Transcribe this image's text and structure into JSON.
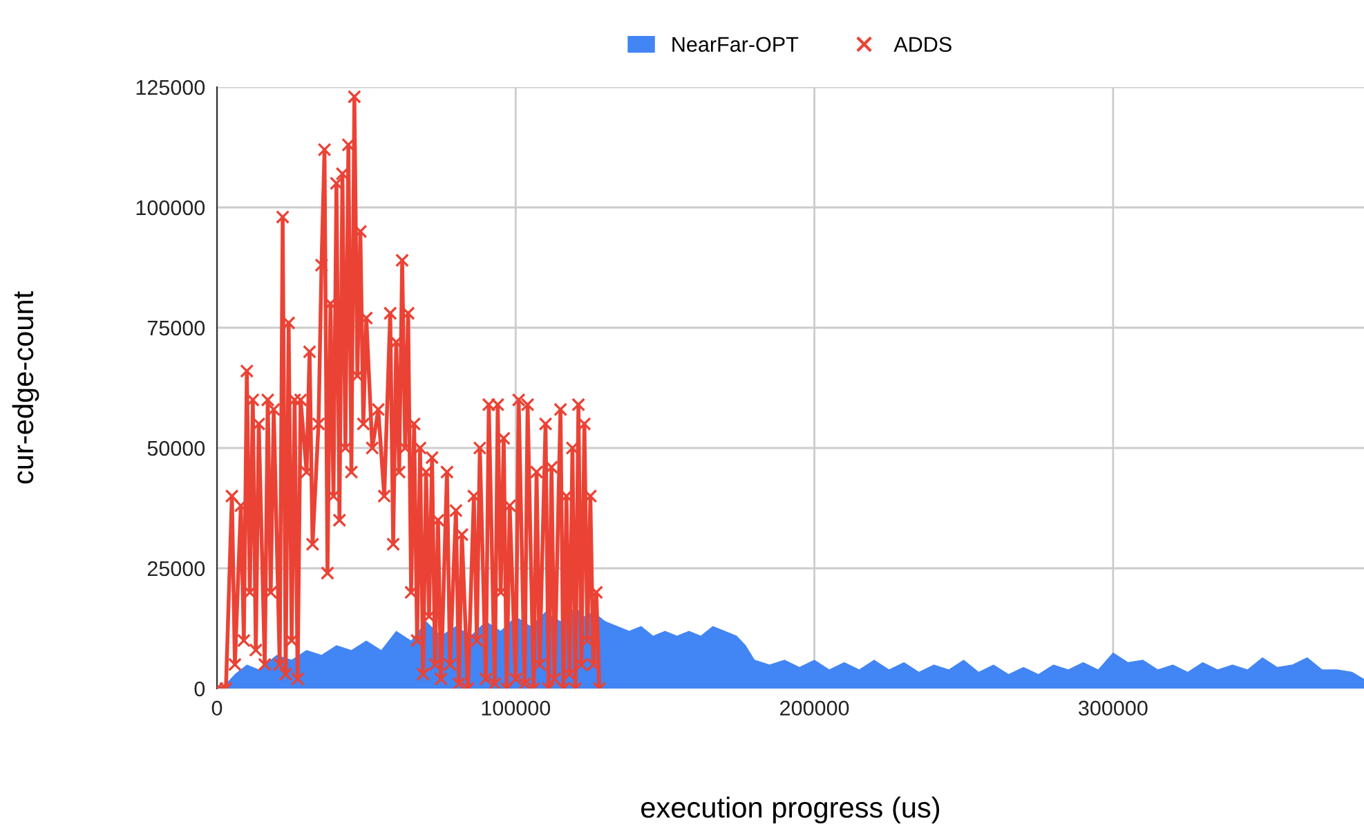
{
  "chart_data": {
    "type": "line",
    "xlabel": "execution progress (us)",
    "ylabel": "cur-edge-count",
    "xlim": [
      0,
      384000
    ],
    "ylim": [
      0,
      125000
    ],
    "xticks": [
      0,
      100000,
      200000,
      300000
    ],
    "yticks": [
      0,
      25000,
      50000,
      75000,
      100000,
      125000
    ],
    "grid": true,
    "legend": "top",
    "series": [
      {
        "name": "NearFar-OPT",
        "type": "area",
        "color": "#4285f4",
        "x": [
          0,
          3000,
          6000,
          10000,
          14000,
          20000,
          25000,
          30000,
          35000,
          40000,
          45000,
          50000,
          55000,
          60000,
          65000,
          70000,
          75000,
          80000,
          85000,
          90000,
          95000,
          100000,
          105000,
          110000,
          115000,
          120000,
          123000,
          126000,
          130000,
          134000,
          138000,
          142000,
          146000,
          150000,
          154000,
          158000,
          162000,
          166000,
          170000,
          174000,
          177000,
          180000,
          185000,
          190000,
          195000,
          200000,
          205000,
          210000,
          215000,
          220000,
          225000,
          230000,
          235000,
          240000,
          245000,
          250000,
          255000,
          260000,
          265000,
          270000,
          275000,
          280000,
          285000,
          290000,
          295000,
          300000,
          305000,
          310000,
          315000,
          320000,
          325000,
          330000,
          335000,
          340000,
          345000,
          350000,
          355000,
          360000,
          365000,
          370000,
          375000,
          380000,
          384000
        ],
        "values": [
          0,
          1000,
          3000,
          5000,
          4000,
          7000,
          6000,
          8000,
          7000,
          9000,
          8000,
          10000,
          8000,
          12000,
          10000,
          14000,
          11000,
          13000,
          11000,
          14000,
          12000,
          15000,
          13000,
          16000,
          14000,
          17000,
          15000,
          16000,
          14000,
          13000,
          12000,
          13000,
          11000,
          12000,
          11000,
          12000,
          11000,
          13000,
          12000,
          11000,
          9000,
          6000,
          5000,
          6000,
          4500,
          6000,
          4000,
          5500,
          4000,
          6000,
          4000,
          5500,
          3500,
          5000,
          4000,
          6000,
          3500,
          5000,
          3000,
          4500,
          3000,
          5000,
          4000,
          5500,
          4000,
          7500,
          5500,
          6000,
          4000,
          5000,
          3500,
          5500,
          4000,
          5000,
          4000,
          6500,
          4500,
          5000,
          6500,
          4000,
          4000,
          3500,
          2000
        ]
      },
      {
        "name": "ADDS",
        "color": "#ea4335",
        "marker": "cross",
        "x": [
          0,
          3000,
          5000,
          6000,
          8000,
          9000,
          10000,
          11000,
          12000,
          13000,
          14000,
          16000,
          17000,
          18000,
          19000,
          21000,
          22000,
          23000,
          24000,
          25000,
          26000,
          27000,
          28000,
          30000,
          31000,
          32000,
          34000,
          35000,
          36000,
          37000,
          38000,
          39000,
          40000,
          41000,
          42000,
          43000,
          44000,
          45000,
          46000,
          47000,
          48000,
          49000,
          50000,
          52000,
          54000,
          56000,
          58000,
          59000,
          60000,
          61000,
          62000,
          63000,
          64000,
          65000,
          66000,
          67000,
          68000,
          69000,
          70000,
          71000,
          72000,
          73000,
          74000,
          75000,
          77000,
          78000,
          80000,
          81000,
          82000,
          84000,
          86000,
          87000,
          88000,
          90000,
          91000,
          93000,
          94000,
          95000,
          96000,
          97000,
          98000,
          100000,
          101000,
          103000,
          104000,
          106000,
          107000,
          108000,
          110000,
          111000,
          112000,
          113000,
          115000,
          116000,
          117000,
          118000,
          119000,
          120000,
          121000,
          122000,
          123000,
          124000,
          125000,
          126000,
          127000,
          128000
        ],
        "values": [
          0,
          0,
          40000,
          5000,
          38000,
          10000,
          66000,
          20000,
          60000,
          8000,
          55000,
          5000,
          60000,
          20000,
          58000,
          5000,
          98000,
          3000,
          76000,
          10000,
          60000,
          2000,
          60000,
          45000,
          70000,
          30000,
          55000,
          88000,
          112000,
          24000,
          80000,
          40000,
          105000,
          35000,
          107000,
          50000,
          113000,
          45000,
          123000,
          65000,
          95000,
          55000,
          77000,
          50000,
          58000,
          40000,
          78000,
          30000,
          72000,
          45000,
          89000,
          50000,
          78000,
          20000,
          55000,
          10000,
          50000,
          3000,
          45000,
          15000,
          48000,
          5000,
          35000,
          2000,
          45000,
          5000,
          37000,
          1000,
          32000,
          0,
          40000,
          10000,
          50000,
          2000,
          59000,
          1000,
          59000,
          20000,
          52000,
          0,
          38000,
          2000,
          60000,
          1000,
          59000,
          0,
          45000,
          5000,
          55000,
          0,
          46000,
          2000,
          58000,
          0,
          40000,
          3000,
          50000,
          0,
          59000,
          5000,
          55000,
          10000,
          40000,
          5000,
          20000,
          0
        ]
      }
    ]
  }
}
